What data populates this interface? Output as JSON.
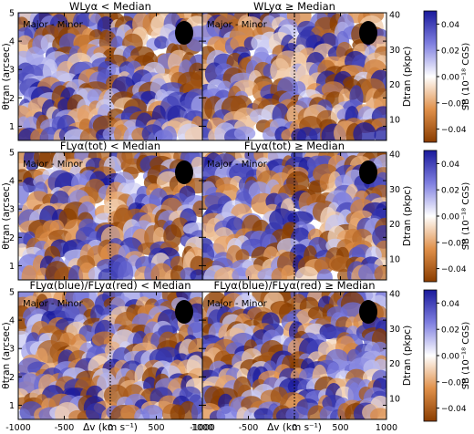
{
  "chart_data": {
    "type": "heatmap",
    "panels_note": "Three rows of paired 2D surface-brightness difference maps",
    "x_axis": {
      "label": "Δv (km s⁻¹)",
      "range": [
        -1000,
        1000
      ],
      "ticks": [
        -1000,
        -500,
        0,
        500,
        1000
      ],
      "tick_labels": [
        "-1000",
        "-500",
        "0",
        "500",
        "1000"
      ]
    },
    "y_axis_left": {
      "label": "θtran (arcsec)",
      "range": [
        0.5,
        5
      ],
      "ticks": [
        1,
        2,
        3,
        4,
        5
      ]
    },
    "y_axis_right": {
      "label": "Dtran (pkpc)",
      "ticks": [
        10,
        20,
        30,
        40
      ],
      "tick_labels": [
        "10",
        "20",
        "30",
        "40"
      ]
    },
    "colorbar": {
      "label": "SB (10⁻¹⁸ CGS)",
      "range": [
        -0.05,
        0.05
      ],
      "ticks": [
        -0.04,
        -0.02,
        0.0,
        0.02,
        0.04
      ],
      "tick_labels": [
        "−0.04",
        "−0.02",
        "0.00",
        "0.02",
        "0.04"
      ],
      "colors": {
        "negative": "#8a3d00",
        "zero": "#ffffff",
        "positive": "#1a1a9c"
      }
    },
    "panel_label": "Major - Minor",
    "rows": [
      {
        "left_title": "WLyα < Median",
        "right_title": "WLyα ≥ Median"
      },
      {
        "left_title": "FLyα(tot) < Median",
        "right_title": "FLyα(tot) ≥ Median"
      },
      {
        "left_title": "FLyα(blue)/FLyα(red) < Median",
        "right_title": "FLyα(blue)/FLyα(red) ≥ Median"
      }
    ],
    "zero_velocity_line": 0,
    "beam_marker": "black ellipse, upper right of each panel"
  }
}
